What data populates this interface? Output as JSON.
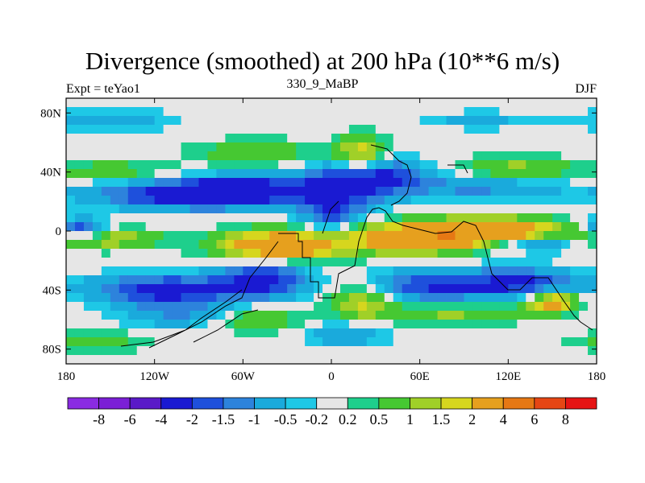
{
  "title": "Divergence (smoothed) at 200 hPa (10**6 m/s)",
  "subtitle_left": "Expt = teYao1",
  "subtitle_center": "330_9_MaBP",
  "subtitle_right": "DJF",
  "map": {
    "lon_range": [
      -180,
      180
    ],
    "lat_range": [
      -90,
      90
    ],
    "x_ticks": [
      {
        "v": -180,
        "label": "180"
      },
      {
        "v": -120,
        "label": "120W"
      },
      {
        "v": -60,
        "label": "60W"
      },
      {
        "v": 0,
        "label": "0"
      },
      {
        "v": 60,
        "label": "60E"
      },
      {
        "v": 120,
        "label": "120E"
      },
      {
        "v": 180,
        "label": "180"
      }
    ],
    "y_ticks": [
      {
        "v": 80,
        "label": "80N"
      },
      {
        "v": 40,
        "label": "40N"
      },
      {
        "v": 0,
        "label": "0"
      },
      {
        "v": -40,
        "label": "40S"
      },
      {
        "v": -80,
        "label": "80S"
      }
    ]
  },
  "colorbar": {
    "colors": [
      "#8a2be2",
      "#7b1fd6",
      "#5a1ac8",
      "#1a1ad2",
      "#1e50dc",
      "#2d83dc",
      "#1aaadc",
      "#1ec8e6",
      "#e6e6e6",
      "#1ecf8c",
      "#46c832",
      "#a0d028",
      "#d6d61e",
      "#e6a01e",
      "#e67814",
      "#e64614",
      "#e61414"
    ],
    "labels": [
      "-8",
      "-6",
      "-4",
      "-2",
      "-1.5",
      "-1",
      "-0.5",
      "-0.2",
      "0.2",
      "0.5",
      "1",
      "1.5",
      "2",
      "4",
      "6",
      "8"
    ]
  },
  "chart_data": {
    "type": "heatmap",
    "title": "Divergence (smoothed) at 200 hPa (10**6 m/s)",
    "field": "divergence (smoothed)",
    "level": "200 hPa",
    "units": "10**6 m/s",
    "season": "DJF",
    "experiment": "teYao1",
    "lon_range": [
      -180,
      180
    ],
    "lat_range": [
      -90,
      90
    ],
    "contour_levels": [
      -8,
      -6,
      -4,
      -2,
      -1.5,
      -1,
      -0.5,
      -0.2,
      0.2,
      0.5,
      1,
      1.5,
      2,
      4,
      6,
      8
    ],
    "features": [
      {
        "lon": -95,
        "lat": 25,
        "amp": -2.6,
        "slon": 45,
        "slat": 7
      },
      {
        "lon": -60,
        "lat": 28,
        "amp": -2.0,
        "slon": 25,
        "slat": 6
      },
      {
        "lon": 5,
        "lat": 30,
        "amp": -2.5,
        "slon": 22,
        "slat": 10
      },
      {
        "lon": 40,
        "lat": 38,
        "amp": -1.5,
        "slon": 18,
        "slat": 8
      },
      {
        "lon": 100,
        "lat": 30,
        "amp": -1.2,
        "slon": 40,
        "slat": 6
      },
      {
        "lon": -150,
        "lat": 40,
        "amp": 0.9,
        "slon": 30,
        "slat": 5
      },
      {
        "lon": -50,
        "lat": 53,
        "amp": 1.0,
        "slon": 30,
        "slat": 6
      },
      {
        "lon": 20,
        "lat": 53,
        "amp": 1.8,
        "slon": 12,
        "slat": 8
      },
      {
        "lon": 125,
        "lat": 42,
        "amp": 1.2,
        "slon": 25,
        "slat": 6
      },
      {
        "lon": 0,
        "lat": 10,
        "amp": -1.5,
        "slon": 14,
        "slat": 7
      },
      {
        "lon": -170,
        "lat": 1,
        "amp": -2.2,
        "slon": 12,
        "slat": 5
      },
      {
        "lon": 140,
        "lat": -8,
        "amp": -1.8,
        "slon": 22,
        "slat": 4
      },
      {
        "lon": -35,
        "lat": -10,
        "amp": 3.5,
        "slon": 28,
        "slat": 7
      },
      {
        "lon": 55,
        "lat": -5,
        "amp": 3.2,
        "slon": 30,
        "slat": 7
      },
      {
        "lon": 110,
        "lat": 0,
        "amp": 3.5,
        "slon": 30,
        "slat": 6
      },
      {
        "lon": -160,
        "lat": -5,
        "amp": 1.6,
        "slon": 30,
        "slat": 5
      },
      {
        "lon": -110,
        "lat": -40,
        "amp": -2.5,
        "slon": 35,
        "slat": 7
      },
      {
        "lon": -45,
        "lat": -32,
        "amp": -2.2,
        "slon": 20,
        "slat": 9
      },
      {
        "lon": 70,
        "lat": -38,
        "amp": -2.0,
        "slon": 30,
        "slat": 8
      },
      {
        "lon": 130,
        "lat": -35,
        "amp": -2.0,
        "slon": 25,
        "slat": 7
      },
      {
        "lon": 20,
        "lat": -48,
        "amp": 1.6,
        "slon": 15,
        "slat": 8
      },
      {
        "lon": -50,
        "lat": -60,
        "amp": 1.2,
        "slon": 20,
        "slat": 6
      },
      {
        "lon": 80,
        "lat": -55,
        "amp": 1.2,
        "slon": 35,
        "slat": 6
      },
      {
        "lon": 150,
        "lat": -48,
        "amp": 2.5,
        "slon": 12,
        "slat": 5
      },
      {
        "lon": -100,
        "lat": -57,
        "amp": -1.0,
        "slon": 30,
        "slat": 6
      },
      {
        "lon": 10,
        "lat": -70,
        "amp": -1.0,
        "slon": 20,
        "slat": 6
      },
      {
        "lon": -160,
        "lat": -75,
        "amp": 0.8,
        "slon": 25,
        "slat": 5
      },
      {
        "lon": -150,
        "lat": 75,
        "amp": -0.8,
        "slon": 30,
        "slat": 5
      },
      {
        "lon": 100,
        "lat": 75,
        "amp": -0.7,
        "slon": 25,
        "slat": 4
      }
    ]
  }
}
